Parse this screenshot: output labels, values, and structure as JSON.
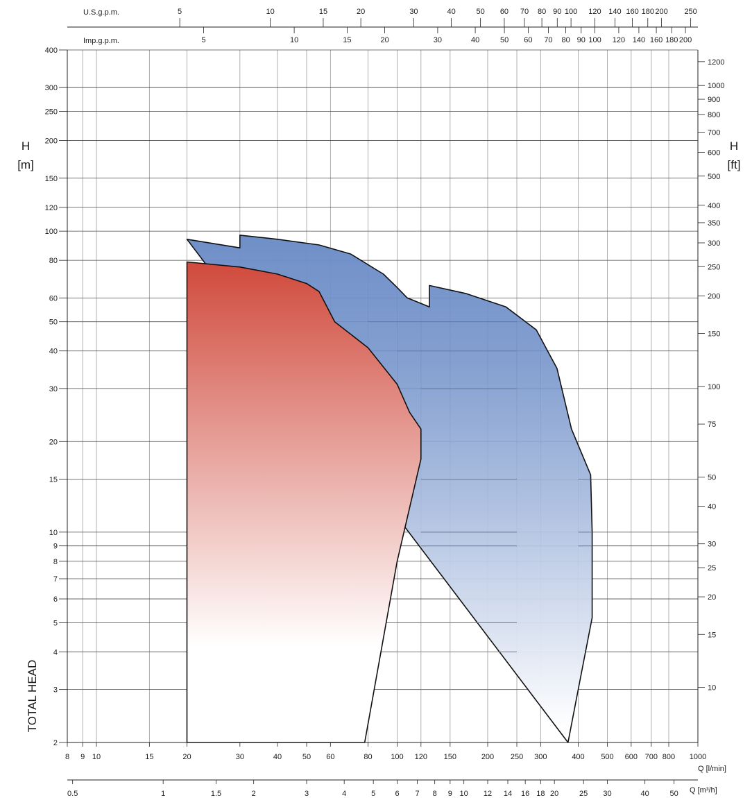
{
  "chart_data": {
    "type": "area",
    "x_scale": "log",
    "y_scale": "log",
    "grid": true,
    "legend": "none",
    "xlim": [
      8,
      1000
    ],
    "ylim": [
      2,
      400
    ],
    "y_left": {
      "title_line1": "H",
      "title_line2": "[m]",
      "side_label": "TOTAL HEAD",
      "ticks": [
        2,
        3,
        4,
        5,
        6,
        7,
        8,
        9,
        10,
        15,
        20,
        30,
        40,
        50,
        60,
        80,
        100,
        120,
        150,
        200,
        250,
        300,
        400
      ]
    },
    "y_right": {
      "title_line1": "H",
      "title_line2": "[ft]",
      "ticks": [
        10,
        15,
        20,
        25,
        30,
        40,
        50,
        75,
        100,
        150,
        200,
        250,
        300,
        350,
        400,
        500,
        600,
        700,
        800,
        900,
        1000,
        1200
      ],
      "factor_to_m": 0.3048
    },
    "x_lpm": {
      "label": "Q [l/min]",
      "ticks": [
        8,
        9,
        10,
        15,
        20,
        30,
        40,
        50,
        60,
        80,
        100,
        120,
        150,
        200,
        250,
        300,
        400,
        500,
        600,
        700,
        800,
        1000
      ]
    },
    "x_m3h": {
      "label": "Q [m³/h]",
      "ticks": [
        "0.5",
        "1",
        "1.5",
        "2",
        "3",
        "4",
        "5",
        "6",
        "7",
        "8",
        "9",
        "10",
        "12",
        "14",
        "16",
        "18",
        "20",
        "25",
        "30",
        "40",
        "50"
      ],
      "factor_to_lpm": 16.6667
    },
    "x_usgpm": {
      "label": "U.S.g.p.m.",
      "ticks": [
        5,
        10,
        15,
        20,
        30,
        40,
        50,
        60,
        70,
        80,
        90,
        100,
        120,
        140,
        160,
        180,
        200,
        250
      ],
      "factor_to_lpm": 3.7854
    },
    "x_impgpm": {
      "label": "Imp.g.p.m.",
      "ticks": [
        5,
        10,
        15,
        20,
        30,
        40,
        50,
        60,
        70,
        80,
        90,
        100,
        120,
        140,
        160,
        180,
        200
      ],
      "factor_to_lpm": 4.5461
    },
    "series": [
      {
        "color_top": "#6f8fc8",
        "color_bottom": "#ffffff",
        "points": [
          [
            20,
            94
          ],
          [
            30,
            88
          ],
          [
            30,
            97
          ],
          [
            40,
            94
          ],
          [
            55,
            90
          ],
          [
            70,
            84
          ],
          [
            90,
            72
          ],
          [
            100,
            65
          ],
          [
            108,
            60
          ],
          [
            128,
            56
          ],
          [
            128,
            66
          ],
          [
            170,
            62
          ],
          [
            230,
            56
          ],
          [
            290,
            47
          ],
          [
            340,
            35
          ],
          [
            380,
            22
          ],
          [
            440,
            15.5
          ],
          [
            445,
            10
          ],
          [
            445,
            5.2
          ],
          [
            400,
            3
          ],
          [
            370,
            2
          ]
        ],
        "inner_lines": [
          {
            "y": 50,
            "x1": 80,
            "x2": 250
          },
          {
            "y": 40,
            "x1": 100,
            "x2": 250
          },
          {
            "y": 30,
            "x1": 120,
            "x2": 250
          },
          {
            "y": 15,
            "x1": 120,
            "x2": 250
          },
          {
            "y": 15,
            "x1": 400,
            "x2": 440
          },
          {
            "y": 10,
            "x1": 120,
            "x2": 250
          },
          {
            "y": 10,
            "x1": 400,
            "x2": 445
          },
          {
            "y": 9,
            "x1": 120,
            "x2": 250
          },
          {
            "y": 9,
            "x1": 400,
            "x2": 445
          },
          {
            "y": 5,
            "x1": 100,
            "x2": 250
          },
          {
            "y": 4,
            "x1": 100,
            "x2": 250
          },
          {
            "y": 3,
            "x1": 100,
            "x2": 250
          }
        ]
      },
      {
        "color_top": "#d04a3c",
        "color_bottom": "#ffffff",
        "points": [
          [
            20,
            79
          ],
          [
            30,
            76
          ],
          [
            40,
            72
          ],
          [
            50,
            67
          ],
          [
            55,
            63
          ],
          [
            62,
            50
          ],
          [
            80,
            41
          ],
          [
            100,
            31
          ],
          [
            110,
            25
          ],
          [
            120,
            22
          ],
          [
            120,
            17.5
          ],
          [
            100,
            8
          ],
          [
            78,
            2
          ],
          [
            20,
            2
          ]
        ]
      }
    ]
  }
}
